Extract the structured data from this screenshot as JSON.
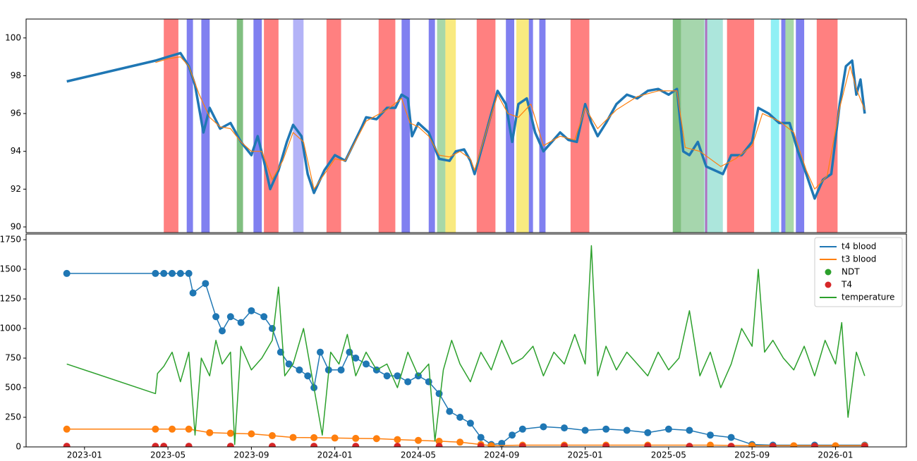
{
  "chart_data": [
    {
      "type": "line",
      "ylim": [
        89.7,
        101.0
      ],
      "yticks": [
        90,
        92,
        94,
        96,
        98,
        100
      ],
      "xlim": [
        -2.8,
        39.4
      ],
      "spans": [
        {
          "x": [
            3.8,
            4.5
          ],
          "color": "#ff8080"
        },
        {
          "x": [
            4.9,
            5.2
          ],
          "color": "#8080f0"
        },
        {
          "x": [
            5.6,
            6.0
          ],
          "color": "#8080f0"
        },
        {
          "x": [
            7.3,
            7.6
          ],
          "color": "#80bf80"
        },
        {
          "x": [
            8.1,
            8.5
          ],
          "color": "#8080f0"
        },
        {
          "x": [
            8.6,
            9.3
          ],
          "color": "#ff8080"
        },
        {
          "x": [
            10.0,
            10.5
          ],
          "color": "#b3b3f7"
        },
        {
          "x": [
            11.6,
            12.3
          ],
          "color": "#ff8080"
        },
        {
          "x": [
            14.1,
            14.9
          ],
          "color": "#ff8080"
        },
        {
          "x": [
            15.2,
            15.6
          ],
          "color": "#8080f0"
        },
        {
          "x": [
            16.5,
            16.8
          ],
          "color": "#8080f0"
        },
        {
          "x": [
            16.9,
            17.3
          ],
          "color": "#a8d8a8"
        },
        {
          "x": [
            17.3,
            17.8
          ],
          "color": "#f9ea80"
        },
        {
          "x": [
            18.8,
            19.7
          ],
          "color": "#ff8080"
        },
        {
          "x": [
            20.2,
            20.6
          ],
          "color": "#8080f0"
        },
        {
          "x": [
            20.7,
            21.3
          ],
          "color": "#f9ea80"
        },
        {
          "x": [
            21.3,
            21.5
          ],
          "color": "#8080f0"
        },
        {
          "x": [
            21.8,
            22.1
          ],
          "color": "#8080f0"
        },
        {
          "x": [
            23.3,
            24.2
          ],
          "color": "#ff8080"
        },
        {
          "x": [
            28.2,
            28.6
          ],
          "color": "#80bf80"
        },
        {
          "x": [
            28.6,
            29.7
          ],
          "color": "#a6d6ad"
        },
        {
          "x": [
            29.7,
            30.6
          ],
          "color": "#ace6dc"
        },
        {
          "x": [
            29.75,
            29.85
          ],
          "color": "#b070c0"
        },
        {
          "x": [
            30.8,
            32.1
          ],
          "color": "#ff8080"
        },
        {
          "x": [
            32.9,
            33.3
          ],
          "color": "#90f0f5"
        },
        {
          "x": [
            33.4,
            33.6
          ],
          "color": "#8080f0"
        },
        {
          "x": [
            33.6,
            34.0
          ],
          "color": "#a8d8a8"
        },
        {
          "x": [
            34.1,
            34.5
          ],
          "color": "#8080f0"
        },
        {
          "x": [
            35.1,
            36.1
          ],
          "color": "#ff8080"
        }
      ],
      "series": [
        {
          "color": "#1f77b4",
          "width": 3.5,
          "x": [
            -0.85,
            3.4,
            4.0,
            4.6,
            5.0,
            5.3,
            5.7,
            6.0,
            6.5,
            7.0,
            7.5,
            8.0,
            8.3,
            8.6,
            8.9,
            9.3,
            9.7,
            10.0,
            10.4,
            10.7,
            11.0,
            11.5,
            12.0,
            12.5,
            13.3,
            13.5,
            14.0,
            14.5,
            14.9,
            15.2,
            15.5,
            15.7,
            16.0,
            16.5,
            17.0,
            17.5,
            17.8,
            18.2,
            18.5,
            18.7,
            19.8,
            20.2,
            20.5,
            20.8,
            21.2,
            21.6,
            22.0,
            22.4,
            22.8,
            23.2,
            23.6,
            24.0,
            24.3,
            24.6,
            25.0,
            25.5,
            26.0,
            26.5,
            27.0,
            27.5,
            28.0,
            28.4,
            28.7,
            29.0,
            29.4,
            29.8,
            30.2,
            30.6,
            31.0,
            31.5,
            32.0,
            32.3,
            32.8,
            33.3,
            33.8,
            34.2,
            34.6,
            35.0,
            35.4,
            35.8,
            36.2,
            36.5,
            36.8,
            37.0,
            37.2,
            37.4
          ],
          "values": [
            97.7,
            98.8,
            99.0,
            99.2,
            98.5,
            97.5,
            95.0,
            96.3,
            95.2,
            95.5,
            94.5,
            93.8,
            94.8,
            93.5,
            92.0,
            93.0,
            94.5,
            95.4,
            94.8,
            92.8,
            91.8,
            93.0,
            93.8,
            93.5,
            95.3,
            95.8,
            95.7,
            96.3,
            96.3,
            97.0,
            96.8,
            94.8,
            95.5,
            95.0,
            93.6,
            93.5,
            94.0,
            94.1,
            93.5,
            92.8,
            97.2,
            96.5,
            94.5,
            96.5,
            96.8,
            95.0,
            94.0,
            94.5,
            95.0,
            94.6,
            94.5,
            96.5,
            95.5,
            94.8,
            95.5,
            96.5,
            97.0,
            96.8,
            97.2,
            97.3,
            97.0,
            97.3,
            94.0,
            93.8,
            94.5,
            93.2,
            93.0,
            92.8,
            93.8,
            93.8,
            94.5,
            96.3,
            96.0,
            95.5,
            95.5,
            94.0,
            92.8,
            91.5,
            92.5,
            92.8,
            96.5,
            98.5,
            98.8,
            97.0,
            97.8,
            96.0
          ]
        },
        {
          "color": "#ff7f0e",
          "width": 1.2,
          "x": [
            3.4,
            4.0,
            4.6,
            5.0,
            5.5,
            6.0,
            6.5,
            7.0,
            7.5,
            8.0,
            8.5,
            9.0,
            9.5,
            10.0,
            10.5,
            11.0,
            11.5,
            12.0,
            12.5,
            13.5,
            14.5,
            15.2,
            15.6,
            16.0,
            16.5,
            17.0,
            17.5,
            18.0,
            18.5,
            18.7,
            19.8,
            20.3,
            20.8,
            21.4,
            22.0,
            22.8,
            23.5,
            24.0,
            24.6,
            25.5,
            26.5,
            27.5,
            28.4,
            28.8,
            29.5,
            30.5,
            31.2,
            32.0,
            32.5,
            33.3,
            34.0,
            34.6,
            35.0,
            35.6,
            36.2,
            36.7,
            37.0,
            37.4
          ],
          "values": [
            98.7,
            98.9,
            99.0,
            98.5,
            97.0,
            95.8,
            95.3,
            95.2,
            94.5,
            94.0,
            94.0,
            92.5,
            93.5,
            95.0,
            94.5,
            92.0,
            92.8,
            93.6,
            93.5,
            95.6,
            96.2,
            96.8,
            95.5,
            95.3,
            94.8,
            93.8,
            93.7,
            94.0,
            93.6,
            93.0,
            97.0,
            96.0,
            95.8,
            96.5,
            94.3,
            94.8,
            94.6,
            96.3,
            95.2,
            96.2,
            96.9,
            97.2,
            97.2,
            94.2,
            94.0,
            93.2,
            93.6,
            94.3,
            96.0,
            95.6,
            95.0,
            93.0,
            92.0,
            92.7,
            96.3,
            98.5,
            97.3,
            96.2
          ]
        }
      ]
    },
    {
      "type": "line",
      "ylim": [
        0,
        1798
      ],
      "xlim": [
        -2.8,
        39.4
      ],
      "yticks": [
        0,
        250,
        500,
        750,
        1000,
        1250,
        1500,
        1750
      ],
      "xticks": [
        {
          "value": 0,
          "label": "2023-01"
        },
        {
          "value": 4,
          "label": "2023-05"
        },
        {
          "value": 8,
          "label": "2023-09"
        },
        {
          "value": 12,
          "label": "2024-01"
        },
        {
          "value": 16,
          "label": "2024-05"
        },
        {
          "value": 20,
          "label": "2024-09"
        },
        {
          "value": 24,
          "label": "2025-01"
        },
        {
          "value": 28,
          "label": "2025-05"
        },
        {
          "value": 32,
          "label": "2025-09"
        },
        {
          "value": 36,
          "label": "2026-01"
        }
      ],
      "legend": "upper right",
      "series": [
        {
          "name": "t4 blood",
          "color": "#1f77b4",
          "kind": "line-markers",
          "x": [
            -0.85,
            3.4,
            3.8,
            4.2,
            4.6,
            5.0,
            5.2,
            5.8,
            6.3,
            6.6,
            7.0,
            7.5,
            8.0,
            8.6,
            9.0,
            9.4,
            9.8,
            10.3,
            10.7,
            11.0,
            11.3,
            11.7,
            12.3,
            12.7,
            13.0,
            13.5,
            14.0,
            14.5,
            15.0,
            15.5,
            16.0,
            16.5,
            17.0,
            17.5,
            18.0,
            18.5,
            19.0,
            19.5,
            20.0,
            20.5,
            21.0,
            22.0,
            23.0,
            24.0,
            25.0,
            26.0,
            27.0,
            28.0,
            29.0,
            30.0,
            31.0,
            32.0,
            33.0,
            35.0,
            37.4
          ],
          "values": [
            1465,
            1465,
            1465,
            1465,
            1465,
            1465,
            1300,
            1380,
            1100,
            980,
            1100,
            1050,
            1150,
            1100,
            1000,
            800,
            700,
            650,
            600,
            500,
            800,
            650,
            650,
            800,
            750,
            700,
            650,
            600,
            600,
            550,
            600,
            550,
            450,
            300,
            250,
            200,
            80,
            20,
            30,
            100,
            150,
            170,
            160,
            140,
            150,
            140,
            120,
            150,
            140,
            100,
            80,
            20,
            15,
            15,
            15
          ]
        },
        {
          "name": "t3 blood",
          "color": "#ff7f0e",
          "kind": "line-markers",
          "x": [
            -0.85,
            3.4,
            4.2,
            5.0,
            6.0,
            7.0,
            8.0,
            9.0,
            10.0,
            11.0,
            12.0,
            13.0,
            14.0,
            15.0,
            16.0,
            17.0,
            18.0,
            19.0,
            19.5,
            21.0,
            23.0,
            25.0,
            27.0,
            30.0,
            32.0,
            34.0,
            36.0,
            37.4
          ],
          "values": [
            150,
            150,
            150,
            150,
            120,
            115,
            110,
            95,
            80,
            78,
            75,
            72,
            70,
            62,
            55,
            48,
            40,
            20,
            10,
            15,
            15,
            15,
            15,
            15,
            10,
            10,
            10,
            10
          ]
        },
        {
          "name": "NDT",
          "color": "#2ca02c",
          "kind": "scatter",
          "x": [
            -0.85,
            3.4
          ],
          "values": [
            0,
            0
          ]
        },
        {
          "name": "T4",
          "color": "#d62728",
          "kind": "scatter",
          "x": [
            -0.85,
            3.4,
            3.8,
            5.0,
            7.0,
            9.0,
            11.0,
            13.0,
            15.0,
            17.0,
            19.0,
            21.0,
            23.0,
            25.0,
            27.0,
            29.0,
            31.0,
            33.0,
            35.0,
            37.4
          ],
          "values": [
            5,
            5,
            5,
            5,
            5,
            5,
            5,
            5,
            5,
            5,
            5,
            5,
            5,
            5,
            5,
            5,
            5,
            5,
            5,
            5
          ]
        },
        {
          "name": "temperature",
          "color": "#2ca02c",
          "kind": "line",
          "x": [
            -0.85,
            3.4,
            3.5,
            3.8,
            4.2,
            4.6,
            5.0,
            5.3,
            5.6,
            6.0,
            6.3,
            6.6,
            7.0,
            7.2,
            7.5,
            8.0,
            8.5,
            9.0,
            9.3,
            9.6,
            10.0,
            10.5,
            11.0,
            11.4,
            11.8,
            12.2,
            12.6,
            13.0,
            13.5,
            14.0,
            14.5,
            15.0,
            15.5,
            16.0,
            16.5,
            16.8,
            17.2,
            17.6,
            18.0,
            18.5,
            19.0,
            19.5,
            20.0,
            20.5,
            21.0,
            21.5,
            22.0,
            22.5,
            23.0,
            23.5,
            24.0,
            24.3,
            24.6,
            25.0,
            25.5,
            26.0,
            26.5,
            27.0,
            27.5,
            28.0,
            28.5,
            29.0,
            29.5,
            30.0,
            30.5,
            31.0,
            31.5,
            32.0,
            32.3,
            32.6,
            33.0,
            33.5,
            34.0,
            34.5,
            35.0,
            35.5,
            36.0,
            36.3,
            36.6,
            37.0,
            37.4
          ],
          "values": [
            700,
            450,
            620,
            680,
            800,
            550,
            800,
            100,
            750,
            600,
            900,
            700,
            800,
            20,
            850,
            650,
            750,
            900,
            1350,
            600,
            700,
            1000,
            500,
            100,
            800,
            700,
            950,
            600,
            800,
            650,
            700,
            500,
            800,
            600,
            700,
            50,
            650,
            900,
            700,
            550,
            800,
            650,
            900,
            700,
            750,
            850,
            600,
            800,
            700,
            950,
            700,
            1700,
            600,
            850,
            650,
            800,
            700,
            600,
            800,
            650,
            750,
            1150,
            600,
            800,
            500,
            700,
            1000,
            850,
            1500,
            800,
            900,
            750,
            650,
            850,
            600,
            900,
            700,
            1050,
            250,
            800,
            600
          ]
        }
      ]
    }
  ]
}
